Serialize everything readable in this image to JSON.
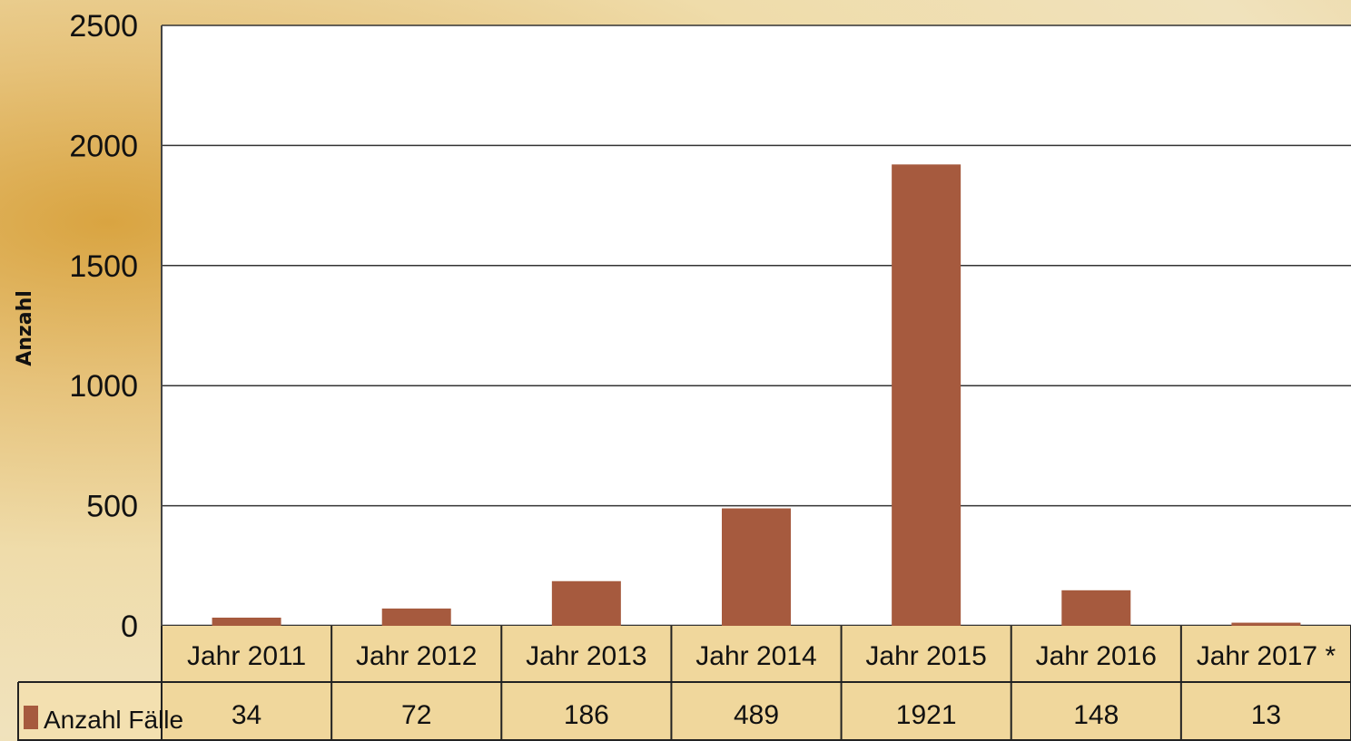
{
  "chart_data": {
    "type": "bar",
    "title": "",
    "xlabel": "",
    "ylabel": "Anzahl",
    "ylim": [
      0,
      2500
    ],
    "yticks": [
      "0",
      "500",
      "1000",
      "1500",
      "2000",
      "2500"
    ],
    "grid": true,
    "categories": [
      "Jahr 2011",
      "Jahr 2012",
      "Jahr 2013",
      "Jahr 2014",
      "Jahr 2015",
      "Jahr 2016",
      "Jahr 2017 *"
    ],
    "series": [
      {
        "name": "Anzahl Fälle",
        "values": [
          34,
          72,
          186,
          489,
          1921,
          148,
          13
        ],
        "color": "#a65a3e"
      }
    ],
    "data_table": true
  }
}
